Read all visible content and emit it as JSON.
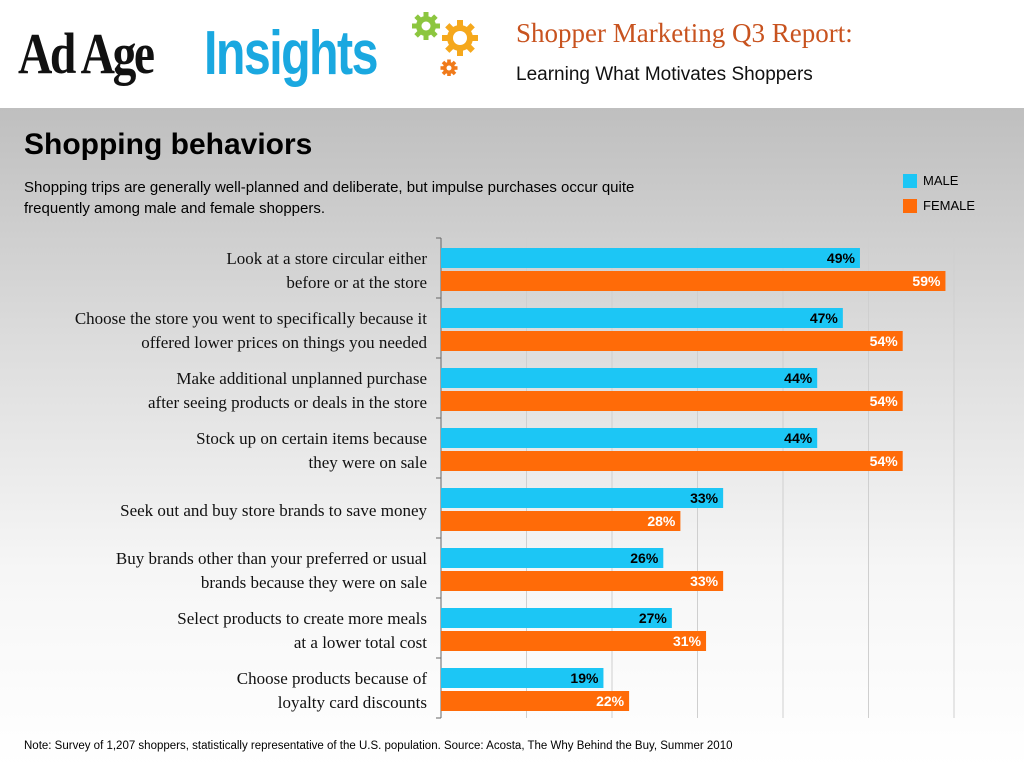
{
  "header": {
    "logo_text": "Ad Age Insights",
    "report_title": "Shopper Marketing Q3 Report:",
    "report_subtitle": "Learning What Motivates Shoppers"
  },
  "section": {
    "title": "Shopping behaviors",
    "description": "Shopping trips are generally well-planned and deliberate, but impulse purchases occur quite frequently among male and female shoppers."
  },
  "colors": {
    "male": "#1cc6f5",
    "female": "#ff6b08"
  },
  "chart_data": {
    "type": "bar",
    "orientation": "horizontal",
    "grid": true,
    "legend": "top-right",
    "categories": [
      [
        "Look at a store circular either",
        "before or at the store"
      ],
      [
        "Choose the store you went to specifically because it",
        "offered lower prices on things you needed"
      ],
      [
        "Make additional unplanned purchase",
        "after seeing products or deals in the store"
      ],
      [
        "Stock up on certain items because",
        "they were on sale"
      ],
      [
        "Seek out and buy store brands to save money"
      ],
      [
        "Buy brands other than your preferred or usual",
        "brands because they were on sale"
      ],
      [
        "Select products to create more meals",
        "at a lower total cost"
      ],
      [
        "Choose products because of",
        "loyalty card discounts"
      ]
    ],
    "series": [
      {
        "name": "MALE",
        "values": [
          49,
          47,
          44,
          44,
          33,
          26,
          27,
          19
        ]
      },
      {
        "name": "FEMALE",
        "values": [
          59,
          54,
          54,
          54,
          28,
          33,
          31,
          22
        ]
      }
    ],
    "value_suffix": "%",
    "xlim": [
      0,
      60
    ]
  },
  "note": "Note: Survey of 1,207 shoppers, statistically representative of the U.S. population. Source: Acosta, The Why Behind the Buy, Summer 2010"
}
